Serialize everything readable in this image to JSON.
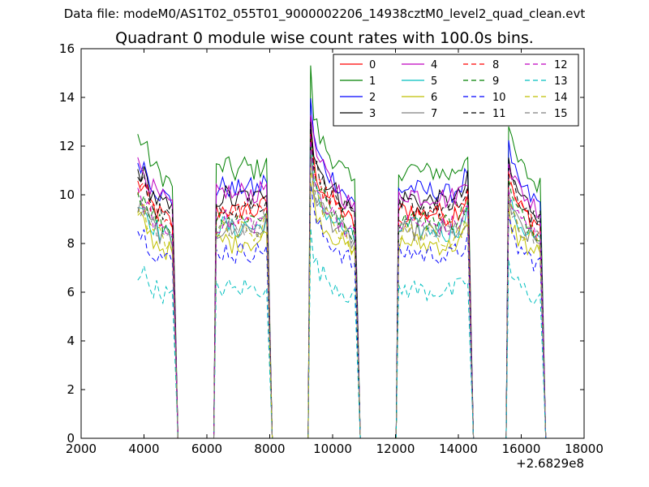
{
  "figure": {
    "suptitle": "Data file: modeM0/AS1T02_055T01_9000002206_14938cztM0_level2_quad_clean.evt"
  },
  "chart_data": {
    "type": "line",
    "title": "Quadrant 0 module wise count rates with 100.0s bins.",
    "xlabel": "",
    "ylabel": "",
    "x_offset_label": "+2.6829e8",
    "xlim": [
      2000,
      18000
    ],
    "ylim": [
      0,
      16
    ],
    "xticks": [
      "2000",
      "4000",
      "6000",
      "8000",
      "10000",
      "12000",
      "14000",
      "16000",
      "18000"
    ],
    "yticks": [
      "0",
      "2",
      "4",
      "6",
      "8",
      "10",
      "12",
      "14",
      "16"
    ],
    "grid": false,
    "legend_position": "top-right",
    "legend_columns": 4,
    "series": [
      {
        "name": "0",
        "color": "#ff0000",
        "dashed": false
      },
      {
        "name": "1",
        "color": "#008000",
        "dashed": false
      },
      {
        "name": "2",
        "color": "#0000ff",
        "dashed": false
      },
      {
        "name": "3",
        "color": "#000000",
        "dashed": false
      },
      {
        "name": "4",
        "color": "#bf00bf",
        "dashed": false
      },
      {
        "name": "5",
        "color": "#00bfbf",
        "dashed": false
      },
      {
        "name": "6",
        "color": "#bfbf00",
        "dashed": false
      },
      {
        "name": "7",
        "color": "#808080",
        "dashed": false
      },
      {
        "name": "8",
        "color": "#ff0000",
        "dashed": true
      },
      {
        "name": "9",
        "color": "#008000",
        "dashed": true
      },
      {
        "name": "10",
        "color": "#0000ff",
        "dashed": true
      },
      {
        "name": "11",
        "color": "#000000",
        "dashed": true
      },
      {
        "name": "12",
        "color": "#bf00bf",
        "dashed": true
      },
      {
        "name": "13",
        "color": "#00bfbf",
        "dashed": true
      },
      {
        "name": "14",
        "color": "#bfbf00",
        "dashed": true
      },
      {
        "name": "15",
        "color": "#808080",
        "dashed": true
      }
    ],
    "series_levels": [
      9.3,
      11.0,
      10.2,
      9.8,
      10.0,
      8.6,
      8.0,
      8.5,
      9.2,
      9.0,
      7.6,
      9.5,
      8.8,
      6.1,
      8.4,
      8.6
    ],
    "time_segments": [
      {
        "start": 3800,
        "end": 4900,
        "level_scale": 1.02
      },
      {
        "start": 6300,
        "end": 7900,
        "level_scale": 1.0
      },
      {
        "start": 9300,
        "end": 10700,
        "level_scale": 1.02
      },
      {
        "start": 12100,
        "end": 14300,
        "level_scale": 1.0
      },
      {
        "start": 15600,
        "end": 16600,
        "level_scale": 1.0
      }
    ],
    "segment_profiles": [
      {
        "x": [
          3800,
          4000,
          4200,
          4400,
          4600,
          4800,
          4900
        ],
        "f": [
          1.1,
          1.08,
          1.02,
          0.98,
          0.96,
          0.94,
          0.93
        ]
      },
      {
        "x": [
          6300,
          6600,
          6900,
          7200,
          7500,
          7700,
          7900
        ],
        "f": [
          1.0,
          1.02,
          0.99,
          1.02,
          1.0,
          1.01,
          1.05
        ]
      },
      {
        "x": [
          9300,
          9400,
          9600,
          9900,
          10200,
          10500,
          10700
        ],
        "f": [
          1.34,
          1.18,
          1.1,
          1.04,
          1.0,
          0.95,
          0.92
        ]
      },
      {
        "x": [
          12100,
          12500,
          12900,
          13300,
          13700,
          14100,
          14300
        ],
        "f": [
          1.0,
          1.01,
          0.99,
          1.0,
          0.98,
          1.02,
          1.08
        ]
      },
      {
        "x": [
          15600,
          15700,
          15900,
          16100,
          16300,
          16500,
          16600
        ],
        "f": [
          1.16,
          1.09,
          1.03,
          1.0,
          0.97,
          0.95,
          0.94
        ]
      }
    ]
  }
}
